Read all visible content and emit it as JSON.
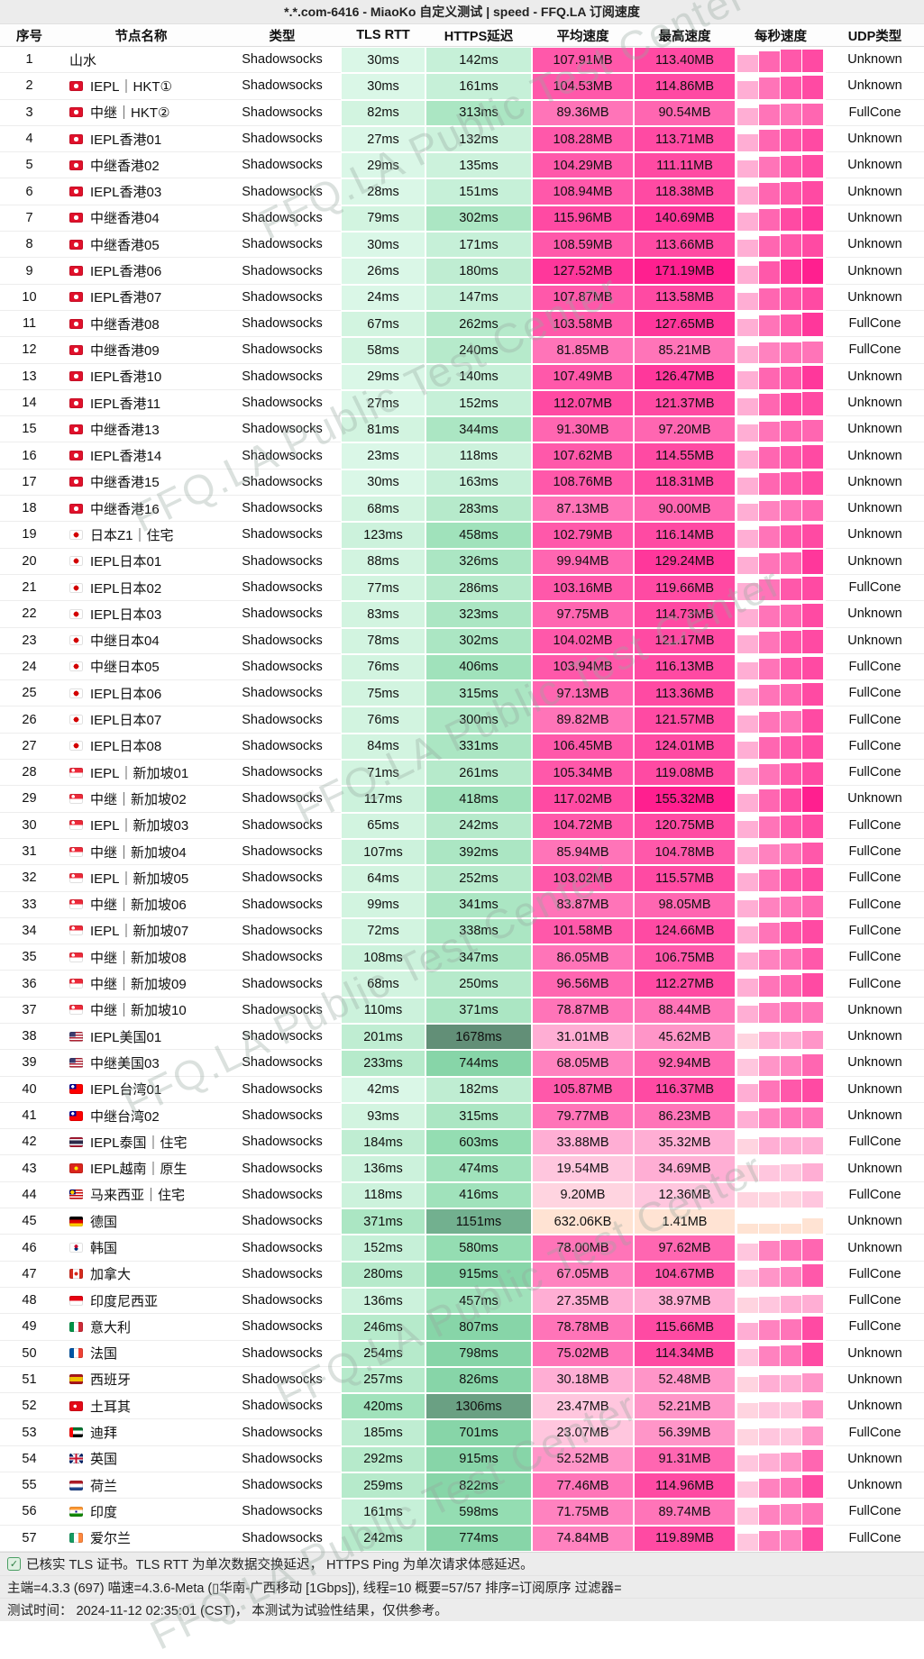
{
  "title": "*.*.com-6416 - MiaoKo 自定义测试 | speed - FFQ.LA 订阅速度",
  "watermark": "FFQ.LA Public Test Center",
  "node_type": "Shadowsocks",
  "columns": [
    "序号",
    "节点名称",
    "类型",
    "TLS RTT",
    "HTTPS延迟",
    "平均速度",
    "最高速度",
    "每秒速度",
    "UDP类型"
  ],
  "row_fields": [
    "no",
    "flag",
    "name",
    "tls_rtt_ms",
    "https_delay_ms",
    "avg_speed",
    "max_speed",
    "udp_type"
  ],
  "rows": [
    [
      1,
      "",
      "山水",
      30,
      142,
      "107.91MB",
      "113.40MB",
      "Unknown"
    ],
    [
      2,
      "hk",
      "IEPL｜HKT①",
      30,
      161,
      "104.53MB",
      "114.86MB",
      "Unknown"
    ],
    [
      3,
      "hk",
      "中继｜HKT②",
      82,
      313,
      "89.36MB",
      "90.54MB",
      "FullCone"
    ],
    [
      4,
      "hk",
      "IEPL香港01",
      27,
      132,
      "108.28MB",
      "113.71MB",
      "Unknown"
    ],
    [
      5,
      "hk",
      "中继香港02",
      29,
      135,
      "104.29MB",
      "111.11MB",
      "Unknown"
    ],
    [
      6,
      "hk",
      "IEPL香港03",
      28,
      151,
      "108.94MB",
      "118.38MB",
      "Unknown"
    ],
    [
      7,
      "hk",
      "中继香港04",
      79,
      302,
      "115.96MB",
      "140.69MB",
      "Unknown"
    ],
    [
      8,
      "hk",
      "中继香港05",
      30,
      171,
      "108.59MB",
      "113.66MB",
      "Unknown"
    ],
    [
      9,
      "hk",
      "IEPL香港06",
      26,
      180,
      "127.52MB",
      "171.19MB",
      "Unknown"
    ],
    [
      10,
      "hk",
      "IEPL香港07",
      24,
      147,
      "107.87MB",
      "113.58MB",
      "Unknown"
    ],
    [
      11,
      "hk",
      "中继香港08",
      67,
      262,
      "103.58MB",
      "127.65MB",
      "FullCone"
    ],
    [
      12,
      "hk",
      "中继香港09",
      58,
      240,
      "81.85MB",
      "85.21MB",
      "FullCone"
    ],
    [
      13,
      "hk",
      "IEPL香港10",
      29,
      140,
      "107.49MB",
      "126.47MB",
      "Unknown"
    ],
    [
      14,
      "hk",
      "IEPL香港11",
      27,
      152,
      "112.07MB",
      "121.37MB",
      "Unknown"
    ],
    [
      15,
      "hk",
      "中继香港13",
      81,
      344,
      "91.30MB",
      "97.20MB",
      "Unknown"
    ],
    [
      16,
      "hk",
      "IEPL香港14",
      23,
      118,
      "107.62MB",
      "114.55MB",
      "Unknown"
    ],
    [
      17,
      "hk",
      "中继香港15",
      30,
      163,
      "108.76MB",
      "118.31MB",
      "Unknown"
    ],
    [
      18,
      "hk",
      "中继香港16",
      68,
      283,
      "87.13MB",
      "90.00MB",
      "Unknown"
    ],
    [
      19,
      "jp",
      "日本Z1｜住宅",
      123,
      458,
      "102.79MB",
      "116.14MB",
      "Unknown"
    ],
    [
      20,
      "jp",
      "IEPL日本01",
      88,
      326,
      "99.94MB",
      "129.24MB",
      "Unknown"
    ],
    [
      21,
      "jp",
      "IEPL日本02",
      77,
      286,
      "103.16MB",
      "119.66MB",
      "FullCone"
    ],
    [
      22,
      "jp",
      "IEPL日本03",
      83,
      323,
      "97.75MB",
      "114.73MB",
      "Unknown"
    ],
    [
      23,
      "jp",
      "中继日本04",
      78,
      302,
      "104.02MB",
      "121.17MB",
      "Unknown"
    ],
    [
      24,
      "jp",
      "中继日本05",
      76,
      406,
      "103.94MB",
      "116.13MB",
      "FullCone"
    ],
    [
      25,
      "jp",
      "IEPL日本06",
      75,
      315,
      "97.13MB",
      "113.36MB",
      "FullCone"
    ],
    [
      26,
      "jp",
      "IEPL日本07",
      76,
      300,
      "89.82MB",
      "121.57MB",
      "FullCone"
    ],
    [
      27,
      "jp",
      "IEPL日本08",
      84,
      331,
      "106.45MB",
      "124.01MB",
      "FullCone"
    ],
    [
      28,
      "sg",
      "IEPL｜新加坡01",
      71,
      261,
      "105.34MB",
      "119.08MB",
      "FullCone"
    ],
    [
      29,
      "sg",
      "中继｜新加坡02",
      117,
      418,
      "117.02MB",
      "155.32MB",
      "Unknown"
    ],
    [
      30,
      "sg",
      "IEPL｜新加坡03",
      65,
      242,
      "104.72MB",
      "120.75MB",
      "FullCone"
    ],
    [
      31,
      "sg",
      "中继｜新加坡04",
      107,
      392,
      "85.94MB",
      "104.78MB",
      "FullCone"
    ],
    [
      32,
      "sg",
      "IEPL｜新加坡05",
      64,
      252,
      "103.02MB",
      "115.57MB",
      "FullCone"
    ],
    [
      33,
      "sg",
      "中继｜新加坡06",
      99,
      341,
      "83.87MB",
      "98.05MB",
      "FullCone"
    ],
    [
      34,
      "sg",
      "IEPL｜新加坡07",
      72,
      338,
      "101.58MB",
      "124.66MB",
      "FullCone"
    ],
    [
      35,
      "sg",
      "中继｜新加坡08",
      108,
      347,
      "86.05MB",
      "106.75MB",
      "FullCone"
    ],
    [
      36,
      "sg",
      "中继｜新加坡09",
      68,
      250,
      "96.56MB",
      "112.27MB",
      "FullCone"
    ],
    [
      37,
      "sg",
      "中继｜新加坡10",
      110,
      371,
      "78.87MB",
      "88.44MB",
      "Unknown"
    ],
    [
      38,
      "us",
      "IEPL美国01",
      201,
      1678,
      "31.01MB",
      "45.62MB",
      "Unknown"
    ],
    [
      39,
      "us",
      "中继美国03",
      233,
      744,
      "68.05MB",
      "92.94MB",
      "Unknown"
    ],
    [
      40,
      "tw",
      "IEPL台湾01",
      42,
      182,
      "105.87MB",
      "116.37MB",
      "Unknown"
    ],
    [
      41,
      "tw",
      "中继台湾02",
      93,
      315,
      "79.77MB",
      "86.23MB",
      "Unknown"
    ],
    [
      42,
      "th",
      "IEPL泰国｜住宅",
      184,
      603,
      "33.88MB",
      "35.32MB",
      "FullCone"
    ],
    [
      43,
      "vn",
      "IEPL越南｜原生",
      136,
      474,
      "19.54MB",
      "34.69MB",
      "Unknown"
    ],
    [
      44,
      "my",
      "马来西亚｜住宅",
      118,
      416,
      "9.20MB",
      "12.36MB",
      "FullCone"
    ],
    [
      45,
      "de",
      "德国",
      371,
      1151,
      "632.06KB",
      "1.41MB",
      "Unknown"
    ],
    [
      46,
      "kr",
      "韩国",
      152,
      580,
      "78.00MB",
      "97.62MB",
      "Unknown"
    ],
    [
      47,
      "ca",
      "加拿大",
      280,
      915,
      "67.05MB",
      "104.67MB",
      "FullCone"
    ],
    [
      48,
      "id",
      "印度尼西亚",
      136,
      457,
      "27.35MB",
      "38.97MB",
      "FullCone"
    ],
    [
      49,
      "it",
      "意大利",
      246,
      807,
      "78.78MB",
      "115.66MB",
      "FullCone"
    ],
    [
      50,
      "fr",
      "法国",
      254,
      798,
      "75.02MB",
      "114.34MB",
      "Unknown"
    ],
    [
      51,
      "es",
      "西班牙",
      257,
      826,
      "30.18MB",
      "52.48MB",
      "Unknown"
    ],
    [
      52,
      "tr",
      "土耳其",
      420,
      1306,
      "23.47MB",
      "52.21MB",
      "Unknown"
    ],
    [
      53,
      "ae",
      "迪拜",
      185,
      701,
      "23.07MB",
      "56.39MB",
      "FullCone"
    ],
    [
      54,
      "gb",
      "英国",
      292,
      915,
      "52.52MB",
      "91.31MB",
      "Unknown"
    ],
    [
      55,
      "nl",
      "荷兰",
      259,
      822,
      "77.46MB",
      "114.96MB",
      "Unknown"
    ],
    [
      56,
      "in",
      "印度",
      161,
      598,
      "71.75MB",
      "89.74MB",
      "FullCone"
    ],
    [
      57,
      "ie",
      "爱尔兰",
      242,
      774,
      "74.84MB",
      "119.89MB",
      "FullCone"
    ]
  ],
  "footer": {
    "line1": "已核实 TLS 证书。TLS RTT 为单次数据交换延迟， HTTPS Ping 为单次请求体感延迟。",
    "line2": "主端=4.3.3 (697) 喵速=4.3.6-Meta (▯华南-广西移动 [1Gbps]), 线程=10 概要=57/57 排序=订阅原序 过滤器=",
    "line3": "测试时间： 2024-11-12 02:35:01 (CST)， 本测试为试验性结果，仅供参考。"
  },
  "colors": {
    "titlebar_bg": "#ececec",
    "latency_green_light": "#d6f6e4",
    "latency_green_dark": "#628f77",
    "speed_pink": "#ff4aa3",
    "speed_pink_deep": "#ff1f8f",
    "speed_cream": "#ffe3d3",
    "checkbox_green": "#2e7d44"
  }
}
